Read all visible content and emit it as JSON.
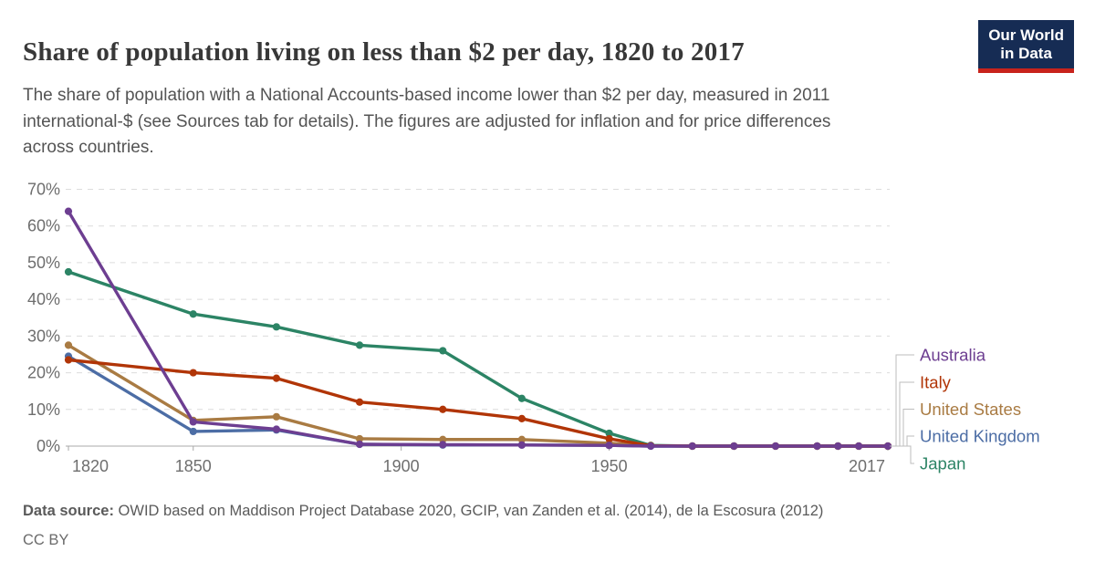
{
  "header": {
    "title": "Share of population living on less than $2 per day, 1820 to 2017",
    "subtitle_lines": [
      "The share of population with a National Accounts-based income lower than $2 per day, measured in 2011",
      "international-$ (see Sources tab for details). The figures are adjusted for inflation and for price differences",
      "across countries."
    ],
    "logo": {
      "line1": "Our World",
      "line2": "in Data"
    }
  },
  "footer": {
    "source_label": "Data source:",
    "source_text": " OWID based on Maddison Project Database 2020, GCIP, van Zanden et al. (2014), de la Escosura (2012)",
    "license": "CC BY"
  },
  "colors": {
    "logo_bg": "#162C54",
    "logo_bar": "#C8231C",
    "grid": "#DCDCDC",
    "axis": "#A9A9A9",
    "axis_text": "#6E6E6E",
    "connector": "#BDBDBD",
    "australia": "#6D3E91",
    "italy": "#B13507",
    "united_states": "#A97B43",
    "united_kingdom": "#4C6DA5",
    "japan": "#2C8465"
  },
  "chart_data": {
    "type": "line",
    "title": "Share of population living on less than $2 per day, 1820 to 2017",
    "xlabel": "",
    "ylabel": "",
    "unit": "%",
    "grid": true,
    "legend_position": "right",
    "xlim": [
      1820,
      2017
    ],
    "ylim": [
      0,
      70
    ],
    "xticks": [
      1820,
      1850,
      1900,
      1950,
      2017
    ],
    "yticks": [
      0,
      10,
      20,
      30,
      40,
      50,
      60,
      70
    ],
    "x": [
      1820,
      1850,
      1870,
      1890,
      1910,
      1929,
      1950,
      1960,
      1970,
      1980,
      1990,
      2000,
      2005,
      2010,
      2017
    ],
    "series": [
      {
        "name": "Australia",
        "color": "#6D3E91",
        "values": [
          64,
          6.6,
          4.6,
          0.5,
          0.4,
          0.3,
          0.2,
          0,
          0,
          0,
          0,
          0,
          0,
          0,
          0
        ]
      },
      {
        "name": "Italy",
        "color": "#B13507",
        "values": [
          23.5,
          20,
          18.5,
          12,
          10,
          7.5,
          2,
          0.1,
          0,
          0,
          0,
          0,
          0,
          0,
          0
        ]
      },
      {
        "name": "United States",
        "color": "#A97B43",
        "values": [
          27.5,
          7,
          8,
          2,
          1.8,
          1.8,
          0.8,
          0.1,
          0,
          0,
          0,
          0,
          0,
          0,
          0
        ]
      },
      {
        "name": "United Kingdom",
        "color": "#4C6DA5",
        "values": [
          24.5,
          4,
          4.4,
          0.5,
          0.3,
          0.3,
          0.2,
          0,
          0,
          0,
          0,
          0,
          0,
          0,
          0
        ]
      },
      {
        "name": "Japan",
        "color": "#2C8465",
        "values": [
          47.5,
          36,
          32.5,
          27.5,
          26,
          13,
          3.5,
          0.2,
          0,
          0,
          0,
          0,
          0,
          0,
          0
        ]
      }
    ]
  }
}
